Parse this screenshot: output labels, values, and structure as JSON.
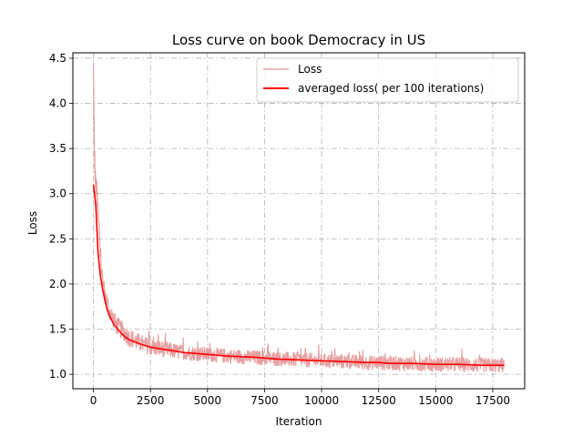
{
  "chart_data": {
    "type": "line",
    "title": "Loss curve on book Democracy in US",
    "xlabel": "Iteration",
    "ylabel": "Loss",
    "xlim": [
      -900,
      18900
    ],
    "ylim": [
      0.84,
      4.56
    ],
    "xticks": [
      0,
      2500,
      5000,
      7500,
      10000,
      12500,
      15000,
      17500
    ],
    "yticks": [
      1.0,
      1.5,
      2.0,
      2.5,
      3.0,
      3.5,
      4.0,
      4.5
    ],
    "xtick_labels": [
      "0",
      "2500",
      "5000",
      "7500",
      "10000",
      "12500",
      "15000",
      "17500"
    ],
    "ytick_labels": [
      "1.0",
      "1.5",
      "2.0",
      "2.5",
      "3.0",
      "3.5",
      "4.0",
      "4.5"
    ],
    "grid": true,
    "legend_position": "top-right",
    "series": [
      {
        "name": "Loss",
        "color": "#e8a0a0",
        "style": "noisy-band",
        "x": [
          0,
          20,
          50,
          100,
          150,
          200,
          300,
          400,
          500,
          700,
          1000,
          1500,
          2000,
          2500,
          3000,
          4000,
          5000,
          6000,
          7500,
          9000,
          10000,
          11000,
          12000,
          12500,
          13500,
          15000,
          16000,
          17000,
          18000
        ],
        "y": [
          4.45,
          3.95,
          3.35,
          3.1,
          3.05,
          2.8,
          2.35,
          2.05,
          1.9,
          1.7,
          1.55,
          1.42,
          1.35,
          1.3,
          1.28,
          1.24,
          1.22,
          1.2,
          1.18,
          1.16,
          1.15,
          1.14,
          1.13,
          1.13,
          1.12,
          1.11,
          1.11,
          1.1,
          1.1
        ],
        "spread": [
          0.0,
          0.2,
          0.12,
          0.1,
          0.1,
          0.1,
          0.1,
          0.1,
          0.1,
          0.1,
          0.1,
          0.1,
          0.1,
          0.09,
          0.09,
          0.08,
          0.08,
          0.08,
          0.08,
          0.08,
          0.08,
          0.08,
          0.08,
          0.08,
          0.08,
          0.08,
          0.08,
          0.08,
          0.08
        ]
      },
      {
        "name": "averaged loss( per 100 iterations)",
        "color": "#ff0000",
        "style": "line",
        "x": [
          0,
          100,
          200,
          300,
          400,
          500,
          600,
          700,
          800,
          900,
          1000,
          1200,
          1400,
          1600,
          1800,
          2000,
          2500,
          3000,
          3500,
          4000,
          5000,
          6000,
          7000,
          7500,
          8000,
          9000,
          10000,
          11000,
          12000,
          12500,
          13000,
          14000,
          15000,
          16000,
          17000,
          18000
        ],
        "y": [
          3.1,
          2.88,
          2.35,
          2.1,
          1.95,
          1.82,
          1.72,
          1.65,
          1.6,
          1.55,
          1.52,
          1.46,
          1.41,
          1.38,
          1.36,
          1.34,
          1.3,
          1.28,
          1.26,
          1.24,
          1.22,
          1.2,
          1.19,
          1.18,
          1.17,
          1.16,
          1.15,
          1.14,
          1.13,
          1.13,
          1.12,
          1.12,
          1.11,
          1.11,
          1.1,
          1.1
        ]
      }
    ]
  }
}
